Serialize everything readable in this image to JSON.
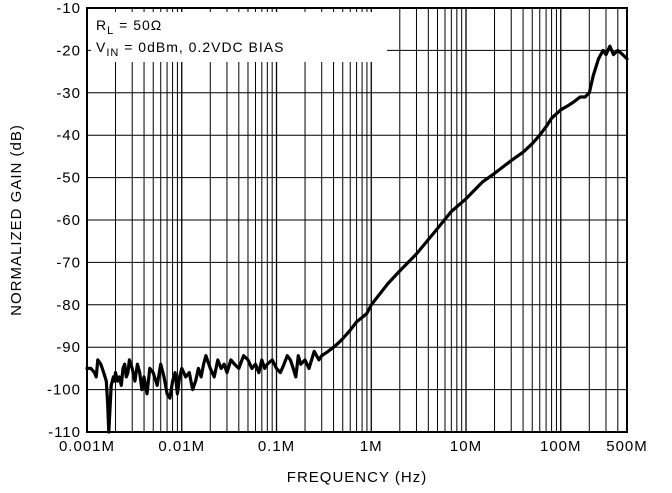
{
  "chart_data": {
    "type": "line",
    "title": "",
    "xlabel": "FREQUENCY (Hz)",
    "ylabel": "NORMALIZED GAIN (dB)",
    "x_scale": "log",
    "xlim": [
      0.001,
      500
    ],
    "ylim": [
      -110,
      -10
    ],
    "grid": true,
    "x_ticks": [
      {
        "value": 0.001,
        "label": "0.001M"
      },
      {
        "value": 0.01,
        "label": "0.01M"
      },
      {
        "value": 0.1,
        "label": "0.1M"
      },
      {
        "value": 1,
        "label": "1M"
      },
      {
        "value": 10,
        "label": "10M"
      },
      {
        "value": 100,
        "label": "100M"
      },
      {
        "value": 500,
        "label": "500M"
      }
    ],
    "y_ticks": [
      {
        "value": -10,
        "label": "-10"
      },
      {
        "value": -20,
        "label": "-20"
      },
      {
        "value": -30,
        "label": "-30"
      },
      {
        "value": -40,
        "label": "-40"
      },
      {
        "value": -50,
        "label": "-50"
      },
      {
        "value": -60,
        "label": "-60"
      },
      {
        "value": -70,
        "label": "-70"
      },
      {
        "value": -80,
        "label": "-80"
      },
      {
        "value": -90,
        "label": "-90"
      },
      {
        "value": -100,
        "label": "-100"
      },
      {
        "value": -110,
        "label": "-110"
      }
    ],
    "annotations": {
      "line1": {
        "main": "R",
        "sub": "L",
        "rest": " =  50Ω"
      },
      "line2": {
        "main": "V",
        "sub": "IN",
        "rest": " =  0dBm, 0.2VDC BIAS"
      }
    },
    "series": [
      {
        "color": "#000000",
        "x": [
          0.001,
          0.0011,
          0.0012,
          0.00125,
          0.0013,
          0.0014,
          0.0015,
          0.0016,
          0.00165,
          0.0017,
          0.0018,
          0.0019,
          0.00195,
          0.002,
          0.0021,
          0.0022,
          0.0023,
          0.0024,
          0.0025,
          0.0026,
          0.0027,
          0.0028,
          0.003,
          0.0032,
          0.0034,
          0.0036,
          0.0038,
          0.004,
          0.0043,
          0.0046,
          0.005,
          0.0055,
          0.006,
          0.0065,
          0.007,
          0.0075,
          0.008,
          0.0085,
          0.009,
          0.0095,
          0.01,
          0.011,
          0.012,
          0.013,
          0.014,
          0.015,
          0.016,
          0.017,
          0.018,
          0.02,
          0.022,
          0.024,
          0.026,
          0.028,
          0.03,
          0.033,
          0.036,
          0.04,
          0.045,
          0.05,
          0.055,
          0.06,
          0.065,
          0.07,
          0.075,
          0.08,
          0.09,
          0.1,
          0.11,
          0.12,
          0.13,
          0.14,
          0.15,
          0.16,
          0.17,
          0.18,
          0.2,
          0.22,
          0.25,
          0.28,
          0.3,
          0.35,
          0.4,
          0.45,
          0.5,
          0.6,
          0.7,
          0.8,
          0.9,
          1,
          1.5,
          2,
          3,
          5,
          7,
          10,
          15,
          20,
          30,
          40,
          50,
          60,
          70,
          80,
          100,
          120,
          140,
          160,
          180,
          200,
          220,
          250,
          280,
          300,
          330,
          360,
          400,
          450,
          500
        ],
        "y": [
          -95,
          -95,
          -96,
          -97,
          -93,
          -94,
          -96,
          -98,
          -103,
          -110,
          -99,
          -97,
          -98,
          -96,
          -98,
          -97,
          -99,
          -95,
          -94,
          -97,
          -96,
          -93,
          -95,
          -98,
          -94,
          -96,
          -100,
          -97,
          -101,
          -95,
          -96,
          -99,
          -94,
          -97,
          -101,
          -102,
          -98,
          -96,
          -101,
          -97,
          -95,
          -97,
          -96,
          -100,
          -98,
          -95,
          -97,
          -94,
          -92,
          -95,
          -97,
          -93,
          -95,
          -94,
          -96,
          -93,
          -94,
          -95,
          -92,
          -93,
          -95,
          -94,
          -96,
          -93,
          -95,
          -94,
          -93,
          -95,
          -96,
          -94,
          -92,
          -93,
          -95,
          -97,
          -92,
          -94,
          -93,
          -95,
          -91,
          -93,
          -92,
          -91,
          -90,
          -89,
          -88,
          -86,
          -84,
          -83,
          -82,
          -80,
          -75,
          -72,
          -68,
          -62,
          -58,
          -55,
          -51,
          -49,
          -46,
          -44,
          -42,
          -40,
          -38,
          -36,
          -34,
          -33,
          -32,
          -31,
          -31,
          -30,
          -26,
          -22,
          -20,
          -21,
          -19,
          -21,
          -20,
          -21,
          -22
        ]
      }
    ]
  }
}
